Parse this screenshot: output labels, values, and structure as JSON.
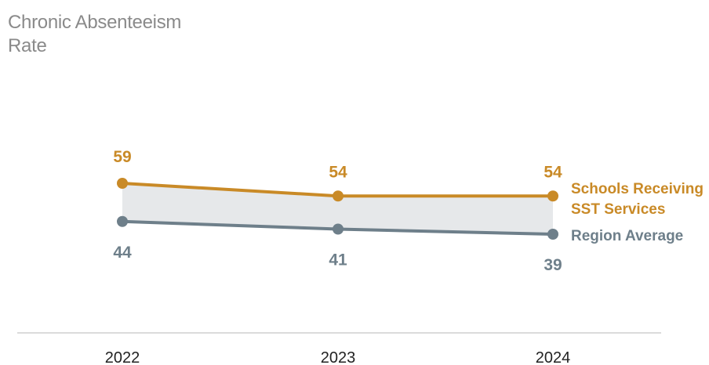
{
  "chart_data": {
    "type": "line",
    "title_lines": [
      "Chronic Absenteeism",
      "Rate"
    ],
    "categories": [
      "2022",
      "2023",
      "2024"
    ],
    "series": [
      {
        "name_lines": [
          "Schools Receiving",
          "SST Services"
        ],
        "values": [
          59,
          54,
          54
        ],
        "color": "#c98a27"
      },
      {
        "name_lines": [
          "Region Average"
        ],
        "values": [
          44,
          41,
          39
        ],
        "color": "#6e7f8a"
      }
    ],
    "band_fill": "#e6e8ea",
    "axis_color": "#cfcfcf",
    "grid": false,
    "legend": "inline-right"
  }
}
